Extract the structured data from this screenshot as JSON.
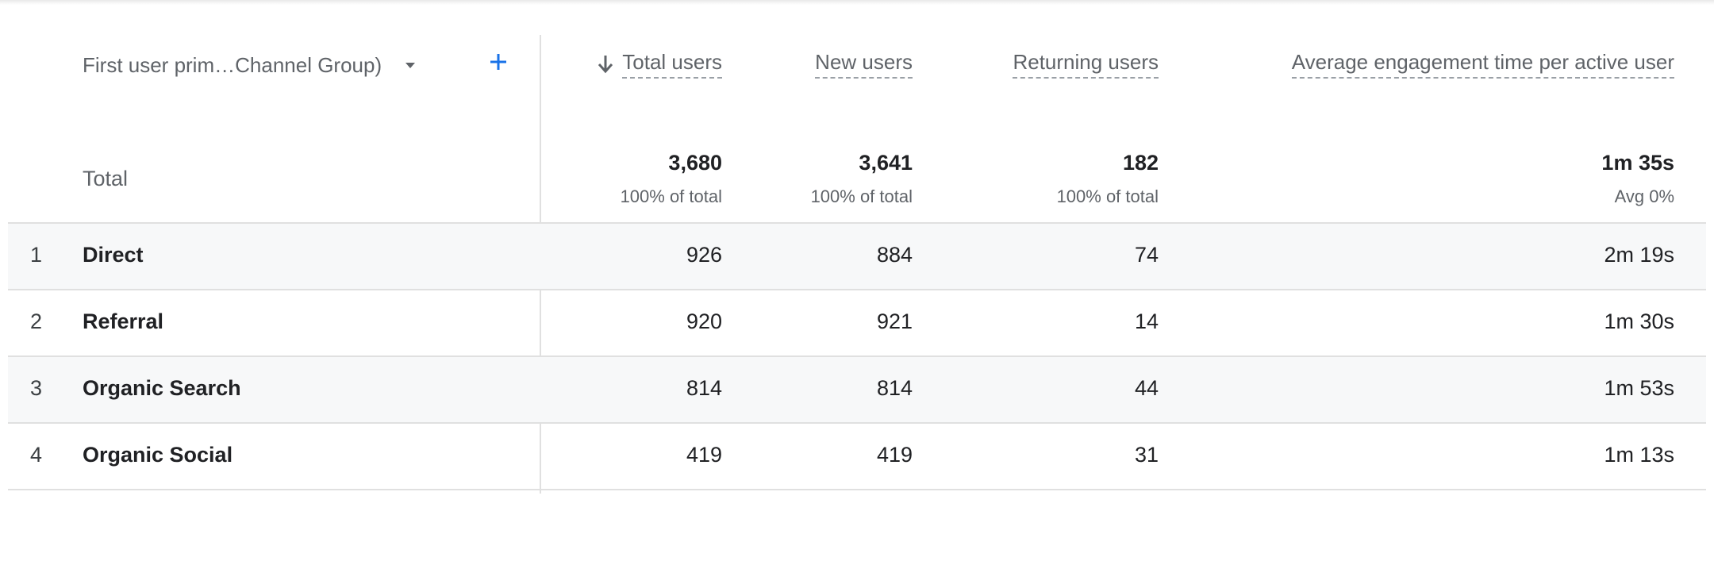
{
  "table": {
    "dimension_header": "First user prim…Channel Group)",
    "columns": {
      "total_users": "Total users",
      "new_users": "New users",
      "returning_users": "Returning users",
      "avg_engagement": "Average engagement time per active user"
    },
    "total": {
      "label": "Total",
      "total_users": "3,680",
      "total_users_sub": "100% of total",
      "new_users": "3,641",
      "new_users_sub": "100% of total",
      "returning_users": "182",
      "returning_users_sub": "100% of total",
      "avg_engagement": "1m 35s",
      "avg_engagement_sub": "Avg 0%"
    },
    "rows": [
      {
        "num": "1",
        "channel": "Direct",
        "total_users": "926",
        "new_users": "884",
        "returning_users": "74",
        "avg_engagement": "2m 19s"
      },
      {
        "num": "2",
        "channel": "Referral",
        "total_users": "920",
        "new_users": "921",
        "returning_users": "14",
        "avg_engagement": "1m 30s"
      },
      {
        "num": "3",
        "channel": "Organic Search",
        "total_users": "814",
        "new_users": "814",
        "returning_users": "44",
        "avg_engagement": "1m 53s"
      },
      {
        "num": "4",
        "channel": "Organic Social",
        "total_users": "419",
        "new_users": "419",
        "returning_users": "31",
        "avg_engagement": "1m 13s"
      }
    ]
  },
  "icons": {
    "sort": "arrow-down-icon",
    "add": "plus-icon",
    "dropdown": "caret-down-icon"
  },
  "colors": {
    "accent": "#1a73e8",
    "divider": "#e0e0e0",
    "alt_row": "#f7f8f9"
  }
}
